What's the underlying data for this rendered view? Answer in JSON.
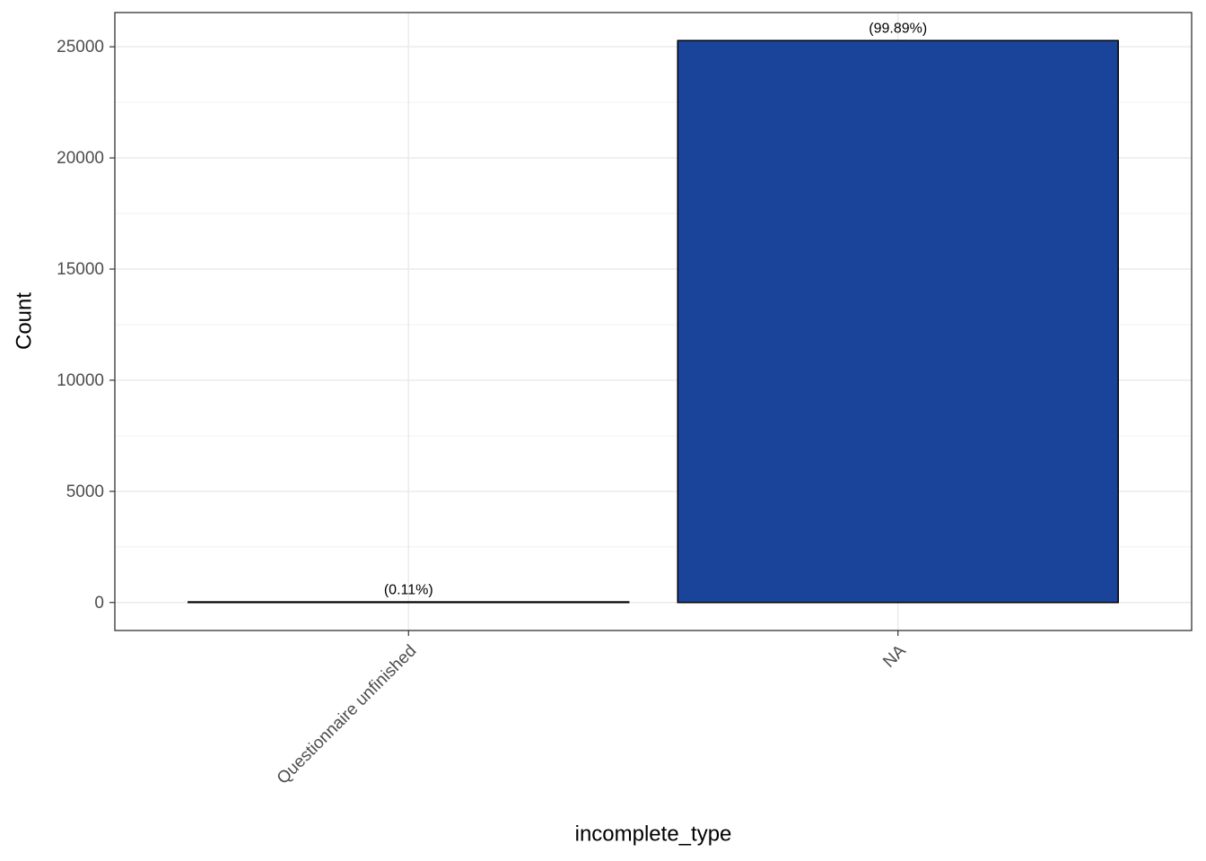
{
  "chart_data": {
    "type": "bar",
    "x_label": "incomplete_type",
    "y_label": "Count",
    "categories": [
      "Questionnaire unfinished",
      "NA"
    ],
    "values": [
      28,
      25280
    ],
    "annotations": [
      "(0.11%)",
      "(99.89%)"
    ],
    "color": "#1a4499",
    "ylim": [
      -1260,
      26540
    ],
    "yticks": [
      0,
      5000,
      10000,
      15000,
      20000,
      25000
    ],
    "grid": true
  }
}
